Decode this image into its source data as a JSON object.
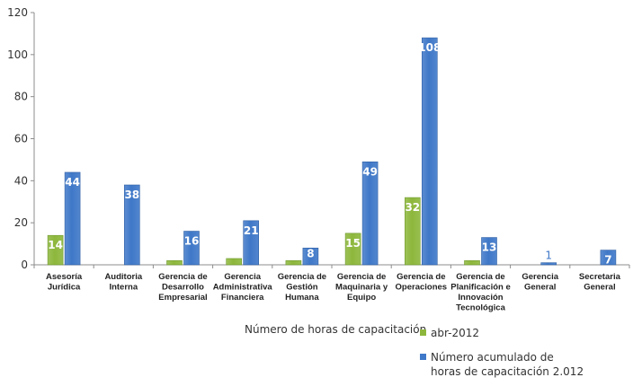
{
  "chart_data": {
    "type": "bar",
    "categories": [
      "Asesoría\nJurídica",
      "Auditoria\nInterna",
      "Gerencia de\nDesarrollo\nEmpresarial",
      "Gerencia\nAdministrativa\nFinanciera",
      "Gerencia de\nGestión\nHumana",
      "Gerencia de\nMaquinaria y\nEquipo",
      "Gerencia de\nOperaciones",
      "Gerencia de\nPlanificación e\nInnovación\nTecnológica",
      "Gerencia\nGeneral",
      "Secretaria\nGeneral"
    ],
    "series": [
      {
        "name": "abr-2012",
        "color": "#8db73c",
        "values": [
          14,
          0,
          2,
          3,
          2,
          15,
          32,
          2,
          0,
          0
        ],
        "labels": [
          "14",
          "",
          "",
          "",
          "",
          "15",
          "32",
          "",
          "",
          ""
        ]
      },
      {
        "name": "Número acumulado de\nhoras de capacitación 2.012",
        "color": "#3f78c8",
        "values": [
          44,
          38,
          16,
          21,
          8,
          49,
          108,
          13,
          1,
          7
        ],
        "labels": [
          "44",
          "38",
          "16",
          "21",
          "8",
          "49",
          "108",
          "13",
          "1",
          "7"
        ]
      }
    ],
    "ylim": [
      0,
      120
    ],
    "yticks": [
      0,
      20,
      40,
      60,
      80,
      100,
      120
    ],
    "legend_title": "Número de horas de capacitación",
    "legend_position": "bottom-right",
    "grid": false
  }
}
